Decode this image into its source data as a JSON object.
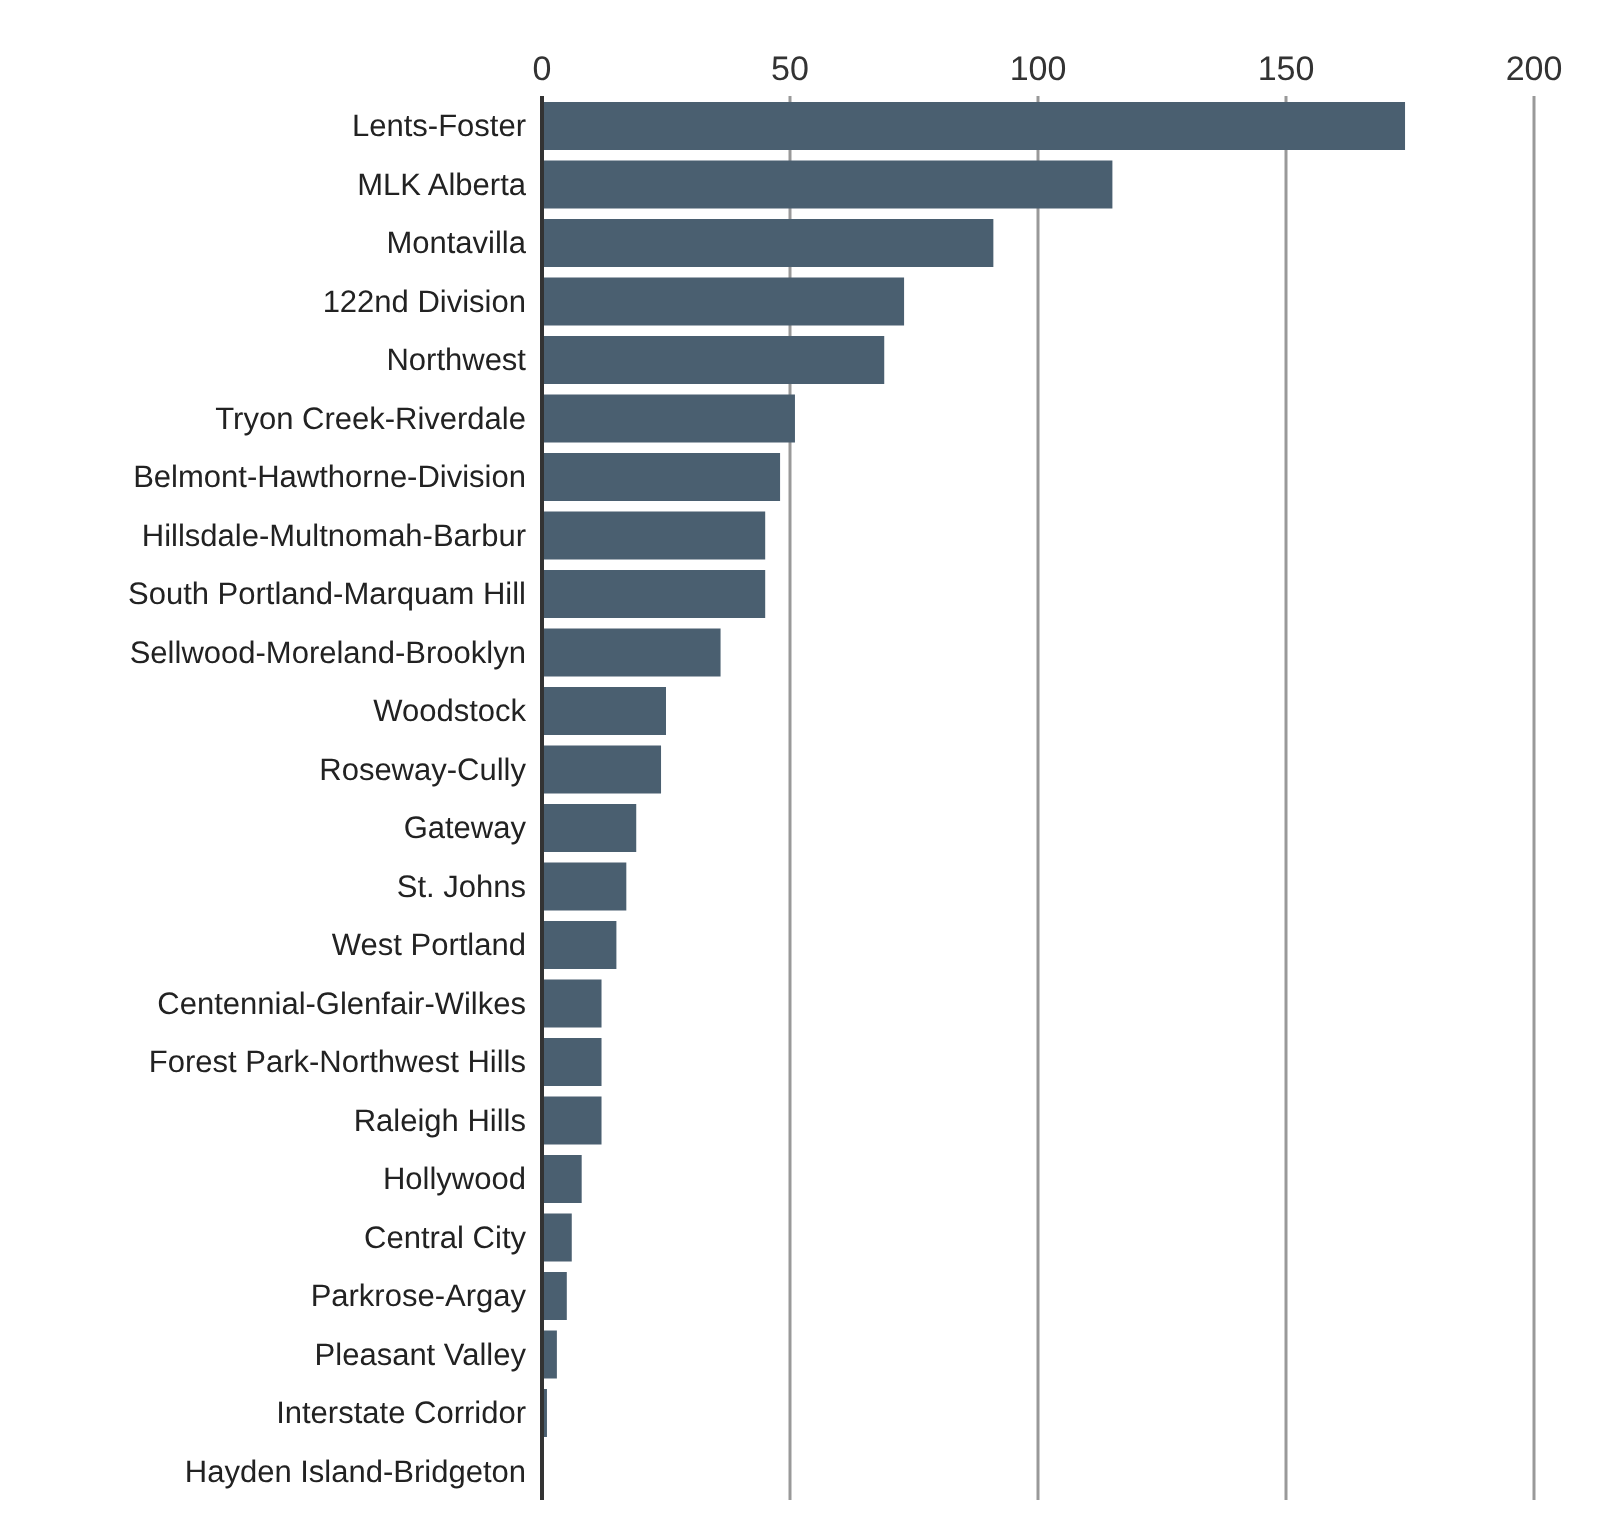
{
  "chart_data": {
    "type": "bar",
    "orientation": "horizontal",
    "categories": [
      "Lents-Foster",
      "MLK Alberta",
      "Montavilla",
      "122nd Division",
      "Northwest",
      "Tryon Creek-Riverdale",
      "Belmont-Hawthorne-Division",
      "Hillsdale-Multnomah-Barbur",
      "South Portland-Marquam Hill",
      "Sellwood-Moreland-Brooklyn",
      "Woodstock",
      "Roseway-Cully",
      "Gateway",
      "St. Johns",
      "West Portland",
      "Centennial-Glenfair-Wilkes",
      "Forest Park-Northwest Hills",
      "Raleigh Hills",
      "Hollywood",
      "Central City",
      "Parkrose-Argay",
      "Pleasant Valley",
      "Interstate Corridor",
      "Hayden Island-Bridgeton"
    ],
    "values": [
      174,
      115,
      91,
      73,
      69,
      51,
      48,
      45,
      45,
      36,
      25,
      24,
      19,
      17,
      15,
      12,
      12,
      12,
      8,
      6,
      5,
      3,
      1,
      0
    ],
    "color": "#4a5f70",
    "xlim": [
      0,
      200
    ],
    "xticks": [
      0,
      50,
      100,
      150,
      200
    ],
    "grid": "x"
  }
}
